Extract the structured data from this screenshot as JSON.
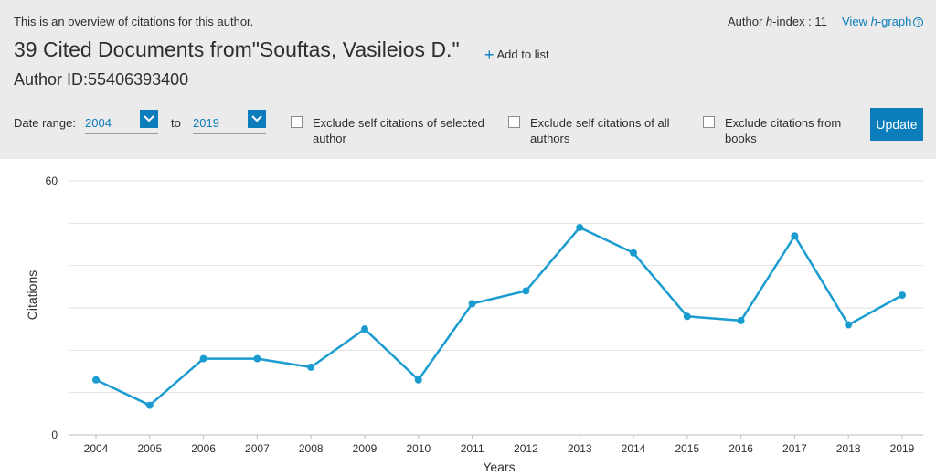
{
  "header": {
    "overview_text": "This is an overview of citations for this author.",
    "hindex_prefix": "Author ",
    "hindex_h": "h",
    "hindex_suffix": "-index : 11",
    "view_prefix": "View ",
    "view_h": "h",
    "view_suffix": "-graph",
    "help_icon": "?",
    "title": "39 Cited Documents from\"Souftas, Vasileios D.\"",
    "add_to_list": "Add to list",
    "author_id": "Author ID:55406393400"
  },
  "filters": {
    "date_range_label": "Date range:",
    "from_year": "2004",
    "to_label": "to",
    "to_year": "2019",
    "exclude_self_selected_line1": "Exclude self citations of selected",
    "exclude_self_selected_line2": "author",
    "exclude_self_all_line1": "Exclude self citations of all",
    "exclude_self_all_line2": "authors",
    "exclude_books_line1": "Exclude citations from",
    "exclude_books_line2": "books",
    "update_label": "Update"
  },
  "colors": {
    "accent": "#0c7dbb",
    "line": "#1b9cd0",
    "header_bg": "#ebebeb"
  },
  "chart_data": {
    "type": "line",
    "title": "",
    "xlabel": "Years",
    "ylabel": "Citations",
    "categories": [
      "2004",
      "2005",
      "2006",
      "2007",
      "2008",
      "2009",
      "2010",
      "2011",
      "2012",
      "2013",
      "2014",
      "2015",
      "2016",
      "2017",
      "2018",
      "2019"
    ],
    "series": [
      {
        "values": [
          13,
          7,
          18,
          18,
          16,
          25,
          13,
          31,
          34,
          49,
          43,
          28,
          27,
          47,
          26,
          33
        ]
      }
    ],
    "ylim": [
      0,
      60
    ],
    "y_tick_labels": [
      "0",
      "60"
    ],
    "grid": true,
    "legend": "none"
  }
}
